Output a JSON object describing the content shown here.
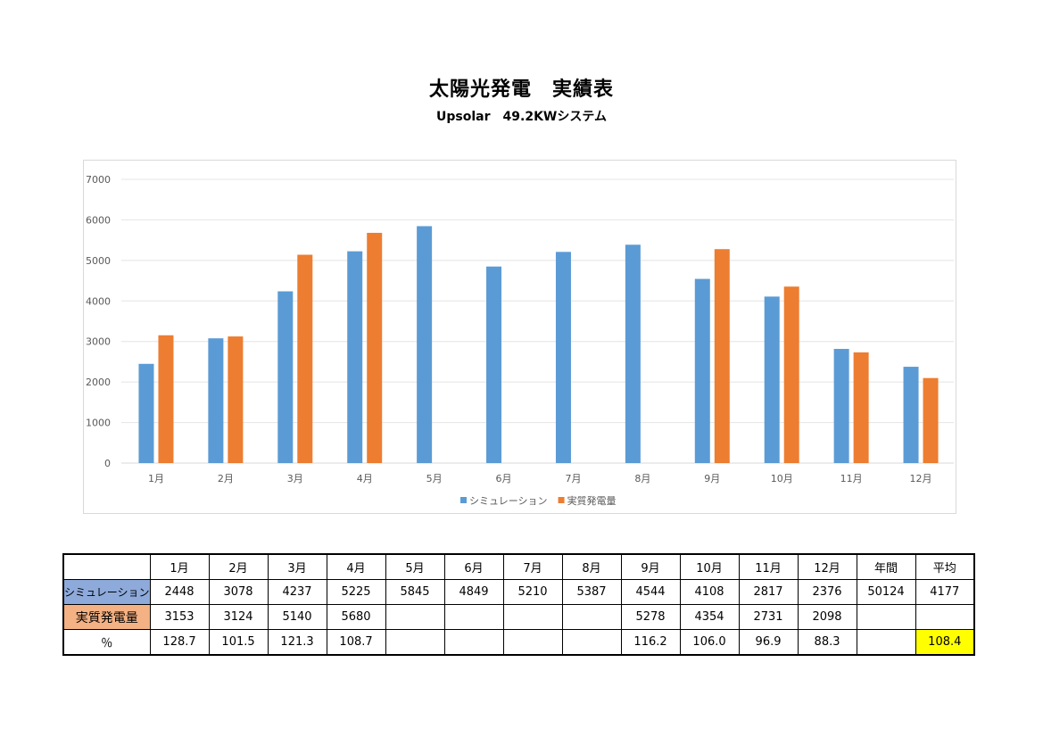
{
  "title": "太陽光発電　実績表",
  "subtitle": "Upsolar　49.2KWシステム",
  "chart_data": {
    "type": "bar",
    "categories": [
      "1月",
      "2月",
      "3月",
      "4月",
      "5月",
      "6月",
      "7月",
      "8月",
      "9月",
      "10月",
      "11月",
      "12月"
    ],
    "series": [
      {
        "name": "シミュレーション",
        "color": "#5b9bd5",
        "values": [
          2448,
          3078,
          4237,
          5225,
          5845,
          4849,
          5210,
          5387,
          4544,
          4108,
          2817,
          2376
        ]
      },
      {
        "name": "実質発電量",
        "color": "#ed7d31",
        "values": [
          3153,
          3124,
          5140,
          5680,
          null,
          null,
          null,
          null,
          5278,
          4354,
          2731,
          2098
        ]
      }
    ],
    "ylim": [
      0,
      7000
    ],
    "yticks": [
      "0",
      "1000",
      "2000",
      "3000",
      "4000",
      "5000",
      "6000",
      "7000"
    ],
    "grid": true,
    "legend": "bottom"
  },
  "table": {
    "header": [
      "",
      "1月",
      "2月",
      "3月",
      "4月",
      "5月",
      "6月",
      "7月",
      "8月",
      "9月",
      "10月",
      "11月",
      "12月",
      "年間",
      "平均"
    ],
    "rows": [
      [
        "シミュレーション",
        "2448",
        "3078",
        "4237",
        "5225",
        "5845",
        "4849",
        "5210",
        "5387",
        "4544",
        "4108",
        "2817",
        "2376",
        "50124",
        "4177"
      ],
      [
        "実質発電量",
        "3153",
        "3124",
        "5140",
        "5680",
        "",
        "",
        "",
        "",
        "5278",
        "4354",
        "2731",
        "2098",
        "",
        ""
      ],
      [
        "％",
        "128.7",
        "101.5",
        "121.3",
        "108.7",
        "",
        "",
        "",
        "",
        "116.2",
        "106.0",
        "96.9",
        "88.3",
        "",
        "108.4"
      ]
    ]
  }
}
